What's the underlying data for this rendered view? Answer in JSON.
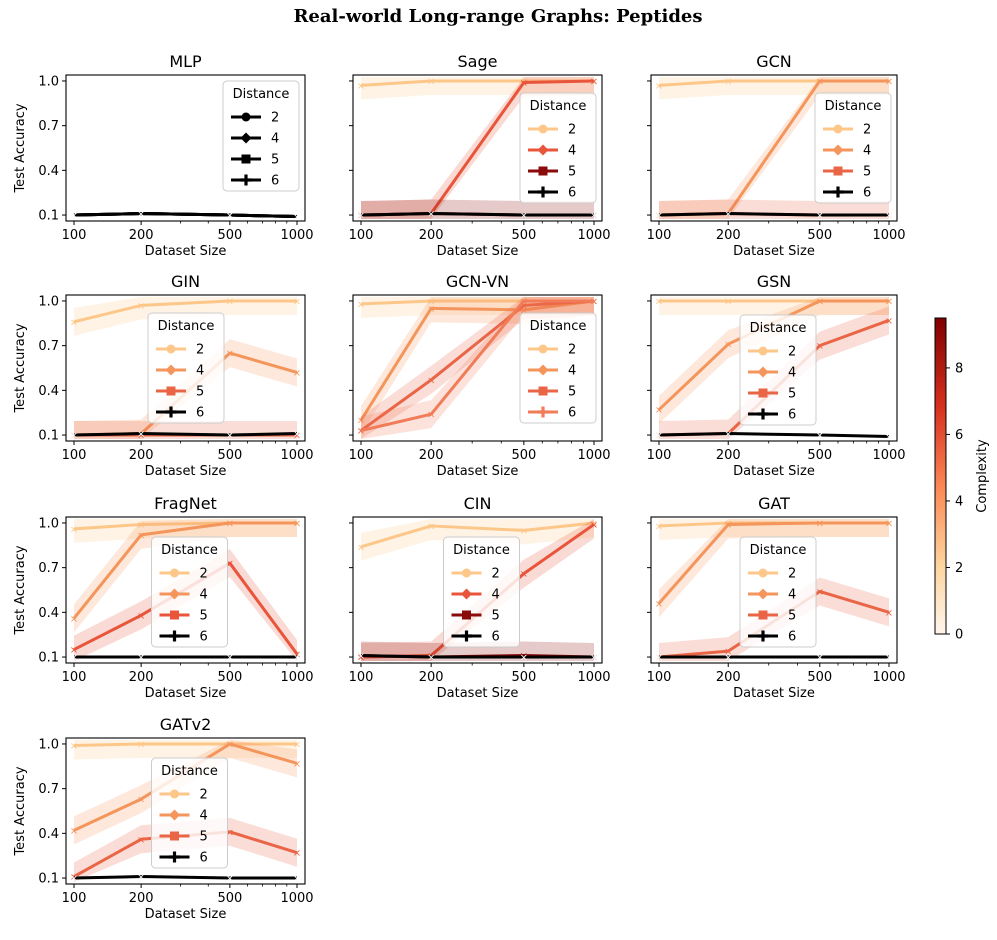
{
  "suptitle": "Real-world Long-range Graphs: Peptides",
  "colorbar": {
    "label": "Complexity",
    "ticks": [
      "0",
      "2",
      "4",
      "6",
      "8"
    ],
    "range": [
      0,
      9.5
    ],
    "colors": [
      "#fff5ec",
      "#fdd49e",
      "#fc8d59",
      "#d7301f",
      "#7f0000"
    ]
  },
  "chart_data": [
    {
      "type": "line",
      "title": "MLP",
      "xlabel": "Dataset Size",
      "ylabel": "Test Accuracy",
      "x": [
        100,
        200,
        500,
        1000
      ],
      "xticks": [
        "100",
        "200",
        "500",
        "1000"
      ],
      "yticks": [
        "0.1",
        "0.4",
        "0.7",
        "1.0"
      ],
      "ylim": [
        0.06,
        1.04
      ],
      "legend": {
        "title": "Distance",
        "position": "upper-right"
      },
      "series": [
        {
          "name": "2",
          "color": "#000000",
          "values": [
            0.1,
            0.11,
            0.1,
            0.09
          ]
        },
        {
          "name": "4",
          "color": "#000000",
          "values": [
            0.1,
            0.11,
            0.1,
            0.09
          ]
        },
        {
          "name": "5",
          "color": "#000000",
          "values": [
            0.1,
            0.11,
            0.1,
            0.09
          ]
        },
        {
          "name": "6",
          "color": "#000000",
          "values": [
            0.1,
            0.11,
            0.1,
            0.09
          ]
        }
      ]
    },
    {
      "type": "line",
      "title": "Sage",
      "xlabel": "Dataset Size",
      "x": [
        100,
        200,
        500,
        1000
      ],
      "xticks": [
        "100",
        "200",
        "500",
        "1000"
      ],
      "ylim": [
        0.06,
        1.04
      ],
      "legend": {
        "title": "Distance",
        "position": "right"
      },
      "series": [
        {
          "name": "2",
          "color": "#fdc78a",
          "values": [
            0.97,
            1.0,
            1.0,
            1.0
          ]
        },
        {
          "name": "4",
          "color": "#e8553a",
          "values": [
            0.1,
            0.11,
            0.99,
            1.0
          ]
        },
        {
          "name": "5",
          "color": "#8b0a0a",
          "values": [
            0.1,
            0.11,
            0.1,
            0.1
          ]
        },
        {
          "name": "6",
          "color": "#000000",
          "values": [
            0.1,
            0.11,
            0.1,
            0.1
          ]
        }
      ]
    },
    {
      "type": "line",
      "title": "GCN",
      "xlabel": "Dataset Size",
      "x": [
        100,
        200,
        500,
        1000
      ],
      "xticks": [
        "100",
        "200",
        "500",
        "1000"
      ],
      "ylim": [
        0.06,
        1.04
      ],
      "legend": {
        "title": "Distance",
        "position": "right"
      },
      "series": [
        {
          "name": "2",
          "color": "#fdc78a",
          "values": [
            0.97,
            1.0,
            1.0,
            1.0
          ]
        },
        {
          "name": "4",
          "color": "#f4955c",
          "values": [
            0.1,
            0.11,
            1.0,
            1.0
          ]
        },
        {
          "name": "5",
          "color": "#ea6446",
          "values": [
            0.1,
            0.11,
            0.1,
            0.1
          ]
        },
        {
          "name": "6",
          "color": "#000000",
          "values": [
            0.1,
            0.11,
            0.1,
            0.1
          ]
        }
      ]
    },
    {
      "type": "line",
      "title": "GIN",
      "xlabel": "Dataset Size",
      "ylabel": "Test Accuracy",
      "x": [
        100,
        200,
        500,
        1000
      ],
      "xticks": [
        "100",
        "200",
        "500",
        "1000"
      ],
      "yticks": [
        "0.1",
        "0.4",
        "0.7",
        "1.0"
      ],
      "ylim": [
        0.06,
        1.04
      ],
      "legend": {
        "title": "Distance",
        "position": "center-left"
      },
      "series": [
        {
          "name": "2",
          "color": "#fdc78a",
          "values": [
            0.86,
            0.97,
            1.0,
            1.0
          ]
        },
        {
          "name": "4",
          "color": "#f4955c",
          "values": [
            0.1,
            0.11,
            0.65,
            0.52
          ]
        },
        {
          "name": "5",
          "color": "#ea6446",
          "values": [
            0.1,
            0.1,
            0.1,
            0.1
          ]
        },
        {
          "name": "6",
          "color": "#000000",
          "values": [
            0.1,
            0.11,
            0.1,
            0.11
          ]
        }
      ]
    },
    {
      "type": "line",
      "title": "GCN-VN",
      "xlabel": "Dataset Size",
      "x": [
        100,
        200,
        500,
        1000
      ],
      "xticks": [
        "100",
        "200",
        "500",
        "1000"
      ],
      "ylim": [
        0.06,
        1.04
      ],
      "legend": {
        "title": "Distance",
        "position": "right"
      },
      "series": [
        {
          "name": "2",
          "color": "#fdc78a",
          "values": [
            0.98,
            1.0,
            1.0,
            1.0
          ]
        },
        {
          "name": "4",
          "color": "#f4955c",
          "values": [
            0.2,
            0.95,
            0.94,
            1.0
          ]
        },
        {
          "name": "5",
          "color": "#ea6446",
          "values": [
            0.13,
            0.47,
            0.97,
            1.0
          ]
        },
        {
          "name": "6",
          "color": "#f07c58",
          "values": [
            0.13,
            0.24,
            1.0,
            1.0
          ]
        }
      ]
    },
    {
      "type": "line",
      "title": "GSN",
      "xlabel": "Dataset Size",
      "x": [
        100,
        200,
        500,
        1000
      ],
      "xticks": [
        "100",
        "200",
        "500",
        "1000"
      ],
      "ylim": [
        0.06,
        1.04
      ],
      "legend": {
        "title": "Distance",
        "position": "center"
      },
      "series": [
        {
          "name": "2",
          "color": "#fdc78a",
          "values": [
            1.0,
            1.0,
            1.0,
            1.0
          ]
        },
        {
          "name": "4",
          "color": "#f4955c",
          "values": [
            0.27,
            0.71,
            1.0,
            1.0
          ]
        },
        {
          "name": "5",
          "color": "#ea6446",
          "values": [
            0.1,
            0.11,
            0.7,
            0.87
          ]
        },
        {
          "name": "6",
          "color": "#000000",
          "values": [
            0.1,
            0.11,
            0.1,
            0.09
          ]
        }
      ]
    },
    {
      "type": "line",
      "title": "FragNet",
      "xlabel": "Dataset Size",
      "ylabel": "Test Accuracy",
      "x": [
        100,
        200,
        500,
        1000
      ],
      "xticks": [
        "100",
        "200",
        "500",
        "1000"
      ],
      "yticks": [
        "0.1",
        "0.4",
        "0.7",
        "1.0"
      ],
      "ylim": [
        0.06,
        1.04
      ],
      "legend": {
        "title": "Distance",
        "position": "center"
      },
      "series": [
        {
          "name": "2",
          "color": "#fdc78a",
          "values": [
            0.96,
            0.99,
            1.0,
            1.0
          ]
        },
        {
          "name": "4",
          "color": "#f4955c",
          "values": [
            0.36,
            0.92,
            1.0,
            1.0
          ]
        },
        {
          "name": "5",
          "color": "#e8553a",
          "values": [
            0.15,
            0.38,
            0.73,
            0.12
          ]
        },
        {
          "name": "6",
          "color": "#000000",
          "values": [
            0.1,
            0.1,
            0.1,
            0.1
          ]
        }
      ]
    },
    {
      "type": "line",
      "title": "CIN",
      "xlabel": "Dataset Size",
      "x": [
        100,
        200,
        500,
        1000
      ],
      "xticks": [
        "100",
        "200",
        "500",
        "1000"
      ],
      "ylim": [
        0.06,
        1.04
      ],
      "legend": {
        "title": "Distance",
        "position": "center"
      },
      "series": [
        {
          "name": "2",
          "color": "#fdc78a",
          "values": [
            0.84,
            0.98,
            0.95,
            1.0
          ]
        },
        {
          "name": "4",
          "color": "#e8553a",
          "values": [
            0.1,
            0.11,
            0.66,
            0.99
          ]
        },
        {
          "name": "5",
          "color": "#8b0a0a",
          "values": [
            0.11,
            0.1,
            0.11,
            0.1
          ]
        },
        {
          "name": "6",
          "color": "#000000",
          "values": [
            0.11,
            0.1,
            0.1,
            0.1
          ]
        }
      ]
    },
    {
      "type": "line",
      "title": "GAT",
      "xlabel": "Dataset Size",
      "x": [
        100,
        200,
        500,
        1000
      ],
      "xticks": [
        "100",
        "200",
        "500",
        "1000"
      ],
      "ylim": [
        0.06,
        1.04
      ],
      "legend": {
        "title": "Distance",
        "position": "center"
      },
      "series": [
        {
          "name": "2",
          "color": "#fdc78a",
          "values": [
            0.98,
            1.0,
            1.0,
            1.0
          ]
        },
        {
          "name": "4",
          "color": "#f4955c",
          "values": [
            0.46,
            0.99,
            1.0,
            1.0
          ]
        },
        {
          "name": "5",
          "color": "#ea6446",
          "values": [
            0.1,
            0.14,
            0.54,
            0.4
          ]
        },
        {
          "name": "6",
          "color": "#000000",
          "values": [
            0.1,
            0.1,
            0.1,
            0.1
          ]
        }
      ]
    },
    {
      "type": "line",
      "title": "GATv2",
      "xlabel": "Dataset Size",
      "ylabel": "Test Accuracy",
      "x": [
        100,
        200,
        500,
        1000
      ],
      "xticks": [
        "100",
        "200",
        "500",
        "1000"
      ],
      "yticks": [
        "0.1",
        "0.4",
        "0.7",
        "1.0"
      ],
      "ylim": [
        0.06,
        1.04
      ],
      "legend": {
        "title": "Distance",
        "position": "center"
      },
      "series": [
        {
          "name": "2",
          "color": "#fdc78a",
          "values": [
            0.99,
            1.0,
            1.0,
            1.0
          ]
        },
        {
          "name": "4",
          "color": "#f4955c",
          "values": [
            0.42,
            0.63,
            1.0,
            0.87
          ]
        },
        {
          "name": "5",
          "color": "#ea6446",
          "values": [
            0.11,
            0.36,
            0.41,
            0.27
          ]
        },
        {
          "name": "6",
          "color": "#000000",
          "values": [
            0.1,
            0.11,
            0.1,
            0.1
          ]
        }
      ]
    }
  ]
}
